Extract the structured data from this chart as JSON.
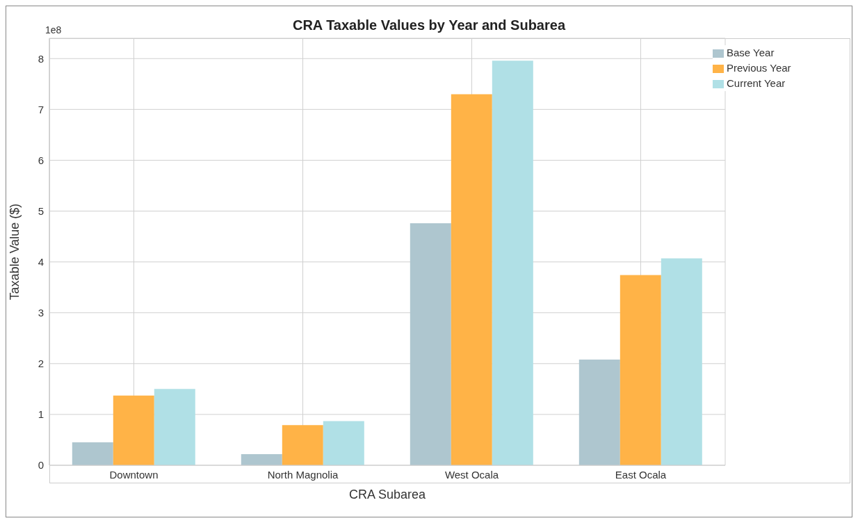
{
  "chart_data": {
    "type": "bar",
    "title": "CRA Taxable Values by Year and Subarea",
    "xlabel": "CRA Subarea",
    "ylabel": "Taxable Value ($)",
    "annotations": [
      "1e8"
    ],
    "categories": [
      "Downtown",
      "North Magnolia",
      "West Ocala",
      "East Ocala"
    ],
    "series": [
      {
        "name": "Base Year",
        "color": "#aec6cf",
        "values": [
          0.45,
          0.22,
          4.76,
          2.08
        ]
      },
      {
        "name": "Previous Year",
        "color": "#ffb347",
        "values": [
          1.37,
          0.79,
          7.3,
          3.74
        ]
      },
      {
        "name": "Current Year",
        "color": "#b0e0e6",
        "values": [
          1.5,
          0.87,
          7.96,
          4.07
        ]
      }
    ],
    "ylim": [
      0,
      8.4
    ],
    "yticks": [
      0,
      1,
      2,
      3,
      4,
      5,
      6,
      7,
      8
    ],
    "grid": true,
    "legend": "top right"
  }
}
